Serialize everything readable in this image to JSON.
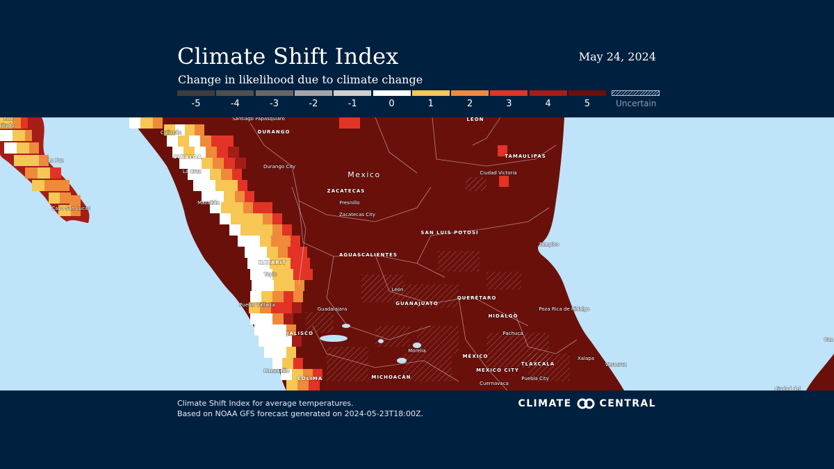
{
  "header": {
    "title": "Climate Shift Index",
    "subtitle": "Change in likelihood due to climate change",
    "date": "May 24, 2024"
  },
  "legend": {
    "items": [
      {
        "label": "-5",
        "color": "#3d3d3d"
      },
      {
        "label": "-4",
        "color": "#4f4f4f"
      },
      {
        "label": "-3",
        "color": "#676767"
      },
      {
        "label": "-2",
        "color": "#a5a6a8"
      },
      {
        "label": "-1",
        "color": "#cfcfcf"
      },
      {
        "label": "0",
        "color": "#ffffff"
      },
      {
        "label": "1",
        "color": "#f6c754"
      },
      {
        "label": "2",
        "color": "#ee8a3a"
      },
      {
        "label": "3",
        "color": "#e33327"
      },
      {
        "label": "4",
        "color": "#a51d17"
      },
      {
        "label": "5",
        "color": "#6a100b"
      }
    ],
    "uncertain_label": "Uncertain"
  },
  "map": {
    "water_color": "#bfe3f8",
    "country_label": "Mexico",
    "states": [
      "DURANGO",
      "SINALOA",
      "ZACATECAS",
      "NAYARIT",
      "AGUASCALIENTES",
      "SAN LUIS POTOSÍ",
      "GUANAJUATO",
      "QUERÉTARO",
      "HIDALGO",
      "JALISCO",
      "MICHOACÁN",
      "COLIMA",
      "MÉXICO",
      "TLAXCALA",
      "TAMAULIPAS",
      "LEÓN",
      "MEXICO CITY"
    ],
    "cities": [
      "Santiago Papasquiaro",
      "Culiacán",
      "La Paz",
      "La Cruz",
      "Durango City",
      "Mazatlán",
      "Cabo San Lucas",
      "Fresnillo",
      "Zacatecas City",
      "Ciudad Victoria",
      "Tampico",
      "Tepic",
      "Puerto Vallarta",
      "Guadalajara",
      "León",
      "Pachuca",
      "Poza Rica de Hidalgo",
      "Morelia",
      "Xalapa",
      "Veracruz",
      "Puebla City",
      "Cuernavaca",
      "Manzanillo",
      "Ciudad del"
    ],
    "edge_labels": [
      "ndo",
      "ritudo",
      "Can",
      "Ciudad del"
    ]
  },
  "footer": {
    "line1": "Climate Shift Index for average temperatures.",
    "line2": "Based on NOAA GFS forecast generated on 2024-05-23T18:00Z.",
    "brand_left": "CLIMATE",
    "brand_right": "CENTRAL"
  }
}
